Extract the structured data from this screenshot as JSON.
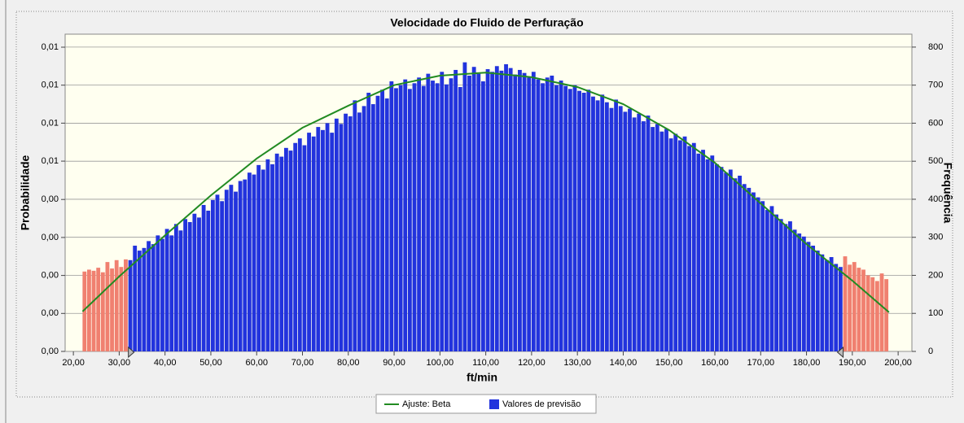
{
  "chart_data": {
    "type": "histogram",
    "title": "Velocidade do Fluido de Perfuração",
    "xlabel": "ft/min",
    "ylabel": "Probabilidade",
    "y2label": "Frequência",
    "grid": true,
    "legend": "bottom",
    "xlim": [
      18.2,
      203
    ],
    "xticks": [
      {
        "value": 20,
        "label": "20,00"
      },
      {
        "value": 30,
        "label": "30,00"
      },
      {
        "value": 40,
        "label": "40,00"
      },
      {
        "value": 50,
        "label": "50,00"
      },
      {
        "value": 60,
        "label": "60,00"
      },
      {
        "value": 70,
        "label": "70,00"
      },
      {
        "value": 80,
        "label": "80,00"
      },
      {
        "value": 90,
        "label": "90,00"
      },
      {
        "value": 100,
        "label": "100,00"
      },
      {
        "value": 110,
        "label": "110,00"
      },
      {
        "value": 120,
        "label": "120,00"
      },
      {
        "value": 130,
        "label": "130,00"
      },
      {
        "value": 140,
        "label": "140,00"
      },
      {
        "value": 150,
        "label": "150,00"
      },
      {
        "value": 160,
        "label": "160,00"
      },
      {
        "value": 170,
        "label": "170,00"
      },
      {
        "value": 180,
        "label": "180,00"
      },
      {
        "value": 190,
        "label": "190,00"
      },
      {
        "value": 200,
        "label": "200,00"
      }
    ],
    "ylim": [
      0,
      0.00927
    ],
    "yticks": [
      {
        "value": 0,
        "label": "0,00"
      },
      {
        "value": 0.00111,
        "label": "0,00"
      },
      {
        "value": 0.00222,
        "label": "0,00"
      },
      {
        "value": 0.00333,
        "label": "0,00"
      },
      {
        "value": 0.00444,
        "label": "0,00"
      },
      {
        "value": 0.00556,
        "label": "0,01"
      },
      {
        "value": 0.00667,
        "label": "0,01"
      },
      {
        "value": 0.00778,
        "label": "0,01"
      },
      {
        "value": 0.00889,
        "label": "0,01"
      }
    ],
    "y2lim": [
      0,
      834
    ],
    "y2ticks": [
      0,
      100,
      200,
      300,
      400,
      500,
      600,
      700,
      800
    ],
    "certainty_range": [
      32,
      188
    ],
    "histogram": {
      "name": "Valores de previsão",
      "color": "#2233dd",
      "tail_color": "#f08070",
      "axis": "y2",
      "bins": [
        22,
        23,
        24,
        25,
        26,
        27,
        28,
        29,
        30,
        31,
        32,
        33,
        34,
        35,
        36,
        37,
        38,
        39,
        40,
        41,
        42,
        43,
        44,
        45,
        46,
        47,
        48,
        49,
        50,
        51,
        52,
        53,
        54,
        55,
        56,
        57,
        58,
        59,
        60,
        61,
        62,
        63,
        64,
        65,
        66,
        67,
        68,
        69,
        70,
        71,
        72,
        73,
        74,
        75,
        76,
        77,
        78,
        79,
        80,
        81,
        82,
        83,
        84,
        85,
        86,
        87,
        88,
        89,
        90,
        91,
        92,
        93,
        94,
        95,
        96,
        97,
        98,
        99,
        100,
        101,
        102,
        103,
        104,
        105,
        106,
        107,
        108,
        109,
        110,
        111,
        112,
        113,
        114,
        115,
        116,
        117,
        118,
        119,
        120,
        121,
        122,
        123,
        124,
        125,
        126,
        127,
        128,
        129,
        130,
        131,
        132,
        133,
        134,
        135,
        136,
        137,
        138,
        139,
        140,
        141,
        142,
        143,
        144,
        145,
        146,
        147,
        148,
        149,
        150,
        151,
        152,
        153,
        154,
        155,
        156,
        157,
        158,
        159,
        160,
        161,
        162,
        163,
        164,
        165,
        166,
        167,
        168,
        169,
        170,
        171,
        172,
        173,
        174,
        175,
        176,
        177,
        178,
        179,
        180,
        181,
        182,
        183,
        184,
        185,
        186,
        187,
        188,
        189,
        190,
        191,
        192,
        193,
        194,
        195,
        196,
        197,
        198
      ],
      "counts": [
        210,
        215,
        212,
        220,
        208,
        235,
        218,
        240,
        222,
        242,
        240,
        278,
        265,
        272,
        290,
        282,
        305,
        296,
        322,
        305,
        335,
        318,
        348,
        340,
        362,
        352,
        385,
        370,
        398,
        412,
        395,
        425,
        438,
        420,
        448,
        452,
        470,
        465,
        490,
        478,
        505,
        492,
        520,
        512,
        535,
        528,
        548,
        560,
        542,
        575,
        565,
        590,
        582,
        600,
        575,
        612,
        598,
        625,
        618,
        660,
        628,
        645,
        680,
        650,
        672,
        688,
        665,
        710,
        692,
        700,
        715,
        690,
        705,
        720,
        698,
        730,
        712,
        705,
        735,
        702,
        718,
        740,
        695,
        760,
        725,
        748,
        730,
        710,
        742,
        735,
        750,
        738,
        755,
        745,
        728,
        740,
        732,
        720,
        735,
        715,
        705,
        720,
        725,
        700,
        712,
        698,
        690,
        700,
        685,
        680,
        688,
        670,
        660,
        675,
        655,
        640,
        662,
        645,
        630,
        638,
        615,
        625,
        605,
        620,
        590,
        598,
        578,
        585,
        560,
        572,
        555,
        565,
        540,
        548,
        520,
        530,
        505,
        515,
        492,
        485,
        470,
        478,
        455,
        462,
        440,
        430,
        418,
        405,
        395,
        372,
        382,
        360,
        348,
        335,
        342,
        320,
        310,
        302,
        288,
        278,
        265,
        255,
        240,
        248,
        230,
        222,
        250,
        228,
        235,
        220,
        215,
        200,
        195,
        185,
        205,
        190
      ]
    },
    "series": [
      {
        "name": "Ajuste: Beta",
        "color": "#228b22",
        "axis": "y2",
        "x": [
          22,
          30,
          40,
          50,
          60,
          70,
          80,
          90,
          100,
          110,
          120,
          130,
          140,
          150,
          160,
          170,
          180,
          190,
          198
        ],
        "values": [
          105,
          197,
          305,
          410,
          507,
          588,
          646,
          700,
          725,
          733,
          721,
          695,
          650,
          582,
          496,
          389,
          282,
          186,
          103
        ]
      }
    ]
  }
}
